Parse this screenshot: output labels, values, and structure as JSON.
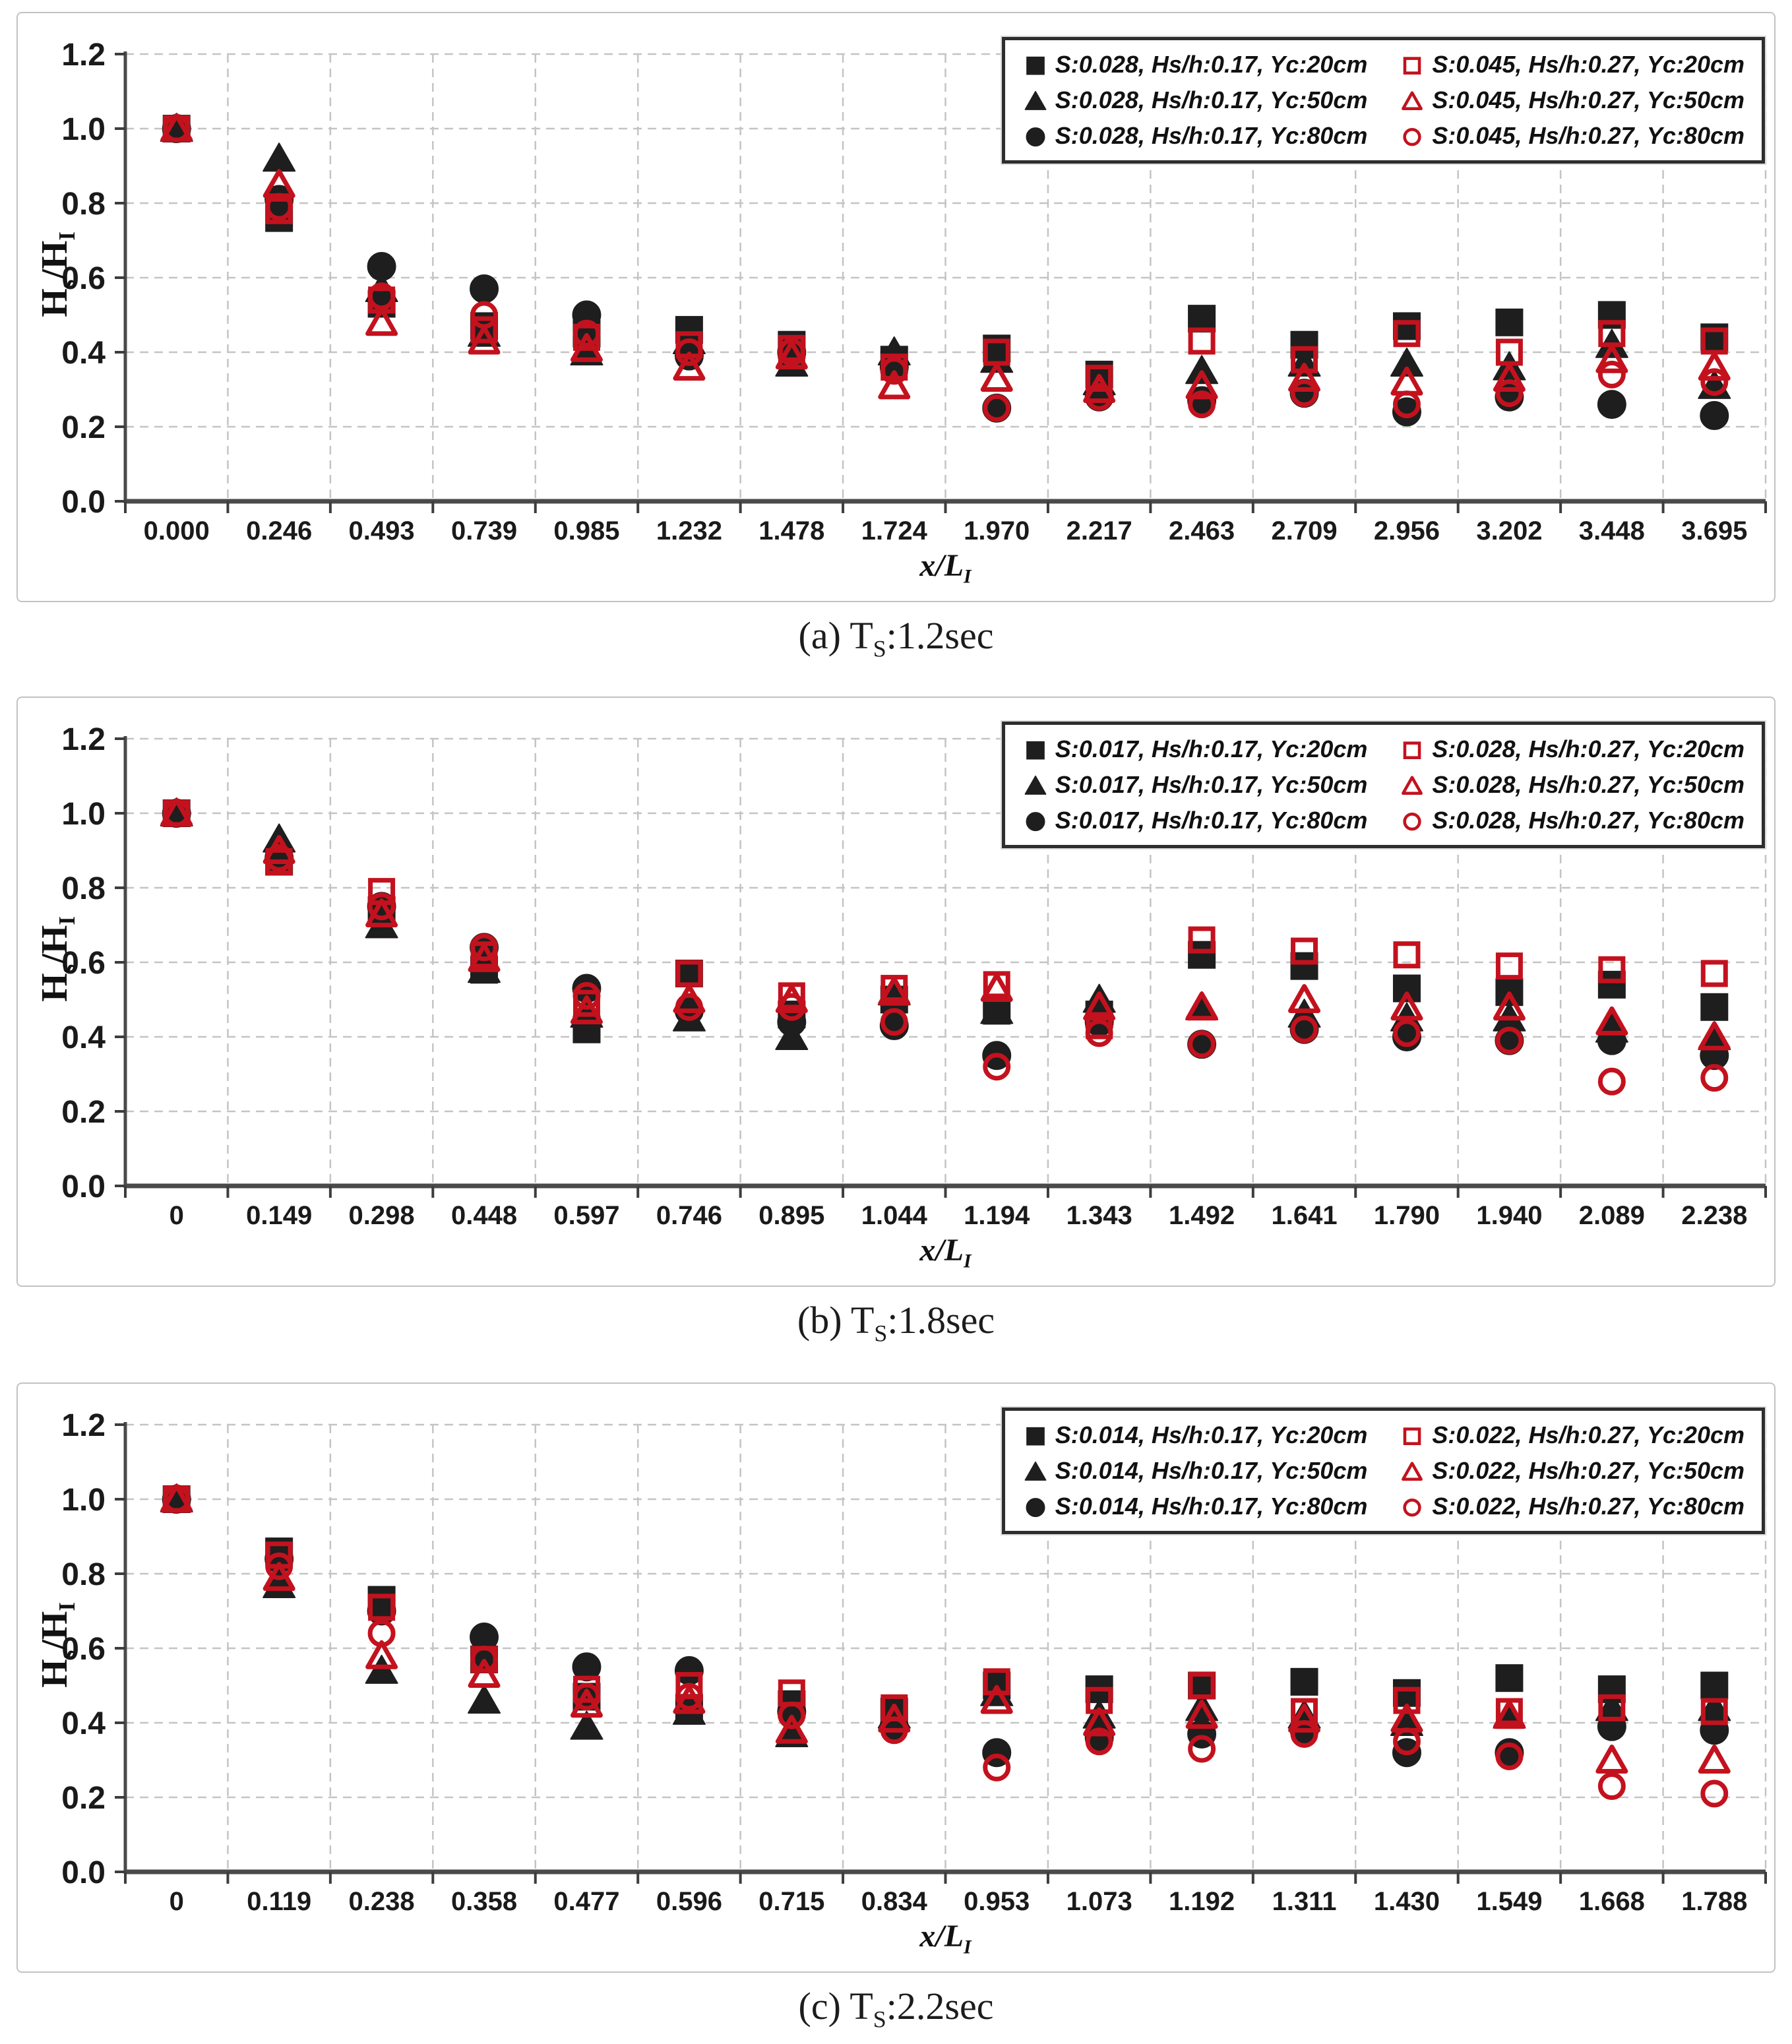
{
  "colors": {
    "black_series": "#1e1e1e",
    "red_series": "#c3121e",
    "grid": "#c4c4c4",
    "axis": "#4a4a4a",
    "panel_border": "#c2c2c2",
    "text": "#111111"
  },
  "y_axis": {
    "label": "Hs/HI",
    "label_parts": [
      [
        "H",
        false
      ],
      [
        "s",
        true
      ],
      [
        "/H",
        false
      ],
      [
        "I",
        true
      ]
    ],
    "tick_labels": [
      "0.0",
      "0.2",
      "0.4",
      "0.6",
      "0.8",
      "1.0",
      "1.2"
    ],
    "min": 0.0,
    "max": 1.2,
    "step": 0.2
  },
  "x_axis": {
    "label": "x/LI",
    "label_parts": [
      [
        "x/L",
        false
      ],
      [
        "I",
        true
      ]
    ]
  },
  "chart_data": [
    {
      "type": "scatter",
      "title": "(a) Ts:1.2sec",
      "caption_parts": [
        [
          "(a) T",
          false
        ],
        [
          "S",
          true
        ],
        [
          ":1.2sec",
          false
        ]
      ],
      "xlabel": "x/LI",
      "ylabel": "Hs/HI",
      "ylim": [
        0.0,
        1.2
      ],
      "grid": true,
      "legend_position": "top-right",
      "categories": [
        "0.000",
        "0.246",
        "0.493",
        "0.739",
        "0.985",
        "1.232",
        "1.478",
        "1.724",
        "1.970",
        "2.217",
        "2.463",
        "2.709",
        "2.956",
        "3.202",
        "3.448",
        "3.695"
      ],
      "series": [
        {
          "name": "S:0.028, Hs/h:0.17, Yc:20cm",
          "marker": "square",
          "variant": "black",
          "values": [
            1.0,
            0.76,
            0.53,
            0.47,
            0.45,
            0.46,
            0.42,
            0.38,
            0.41,
            0.34,
            0.49,
            0.42,
            0.47,
            0.48,
            0.5,
            0.44
          ]
        },
        {
          "name": "S:0.028, Hs/h:0.17, Yc:50cm",
          "marker": "triangle",
          "variant": "black",
          "values": [
            1.0,
            0.92,
            0.57,
            0.45,
            0.4,
            0.43,
            0.37,
            0.4,
            0.38,
            0.32,
            0.35,
            0.37,
            0.37,
            0.36,
            0.42,
            0.31
          ]
        },
        {
          "name": "S:0.028, Hs/h:0.17, Yc:80cm",
          "marker": "circle",
          "variant": "black",
          "values": [
            1.0,
            0.81,
            0.63,
            0.57,
            0.5,
            0.39,
            0.4,
            0.36,
            0.25,
            0.28,
            0.27,
            0.29,
            0.24,
            0.28,
            0.26,
            0.23
          ]
        },
        {
          "name": "S:0.045, Hs/h:0.27, Yc:20cm",
          "marker": "square",
          "variant": "red",
          "values": [
            1.0,
            0.78,
            0.54,
            0.46,
            0.44,
            0.42,
            0.41,
            0.36,
            0.4,
            0.33,
            0.43,
            0.38,
            0.45,
            0.4,
            0.45,
            0.43
          ]
        },
        {
          "name": "S:0.045, Hs/h:0.27, Yc:50cm",
          "marker": "triangle",
          "variant": "red",
          "values": [
            1.0,
            0.85,
            0.48,
            0.43,
            0.41,
            0.36,
            0.39,
            0.31,
            0.33,
            0.3,
            0.31,
            0.33,
            0.32,
            0.33,
            0.38,
            0.36
          ]
        },
        {
          "name": "S:0.045, Hs/h:0.27, Yc:80cm",
          "marker": "circle",
          "variant": "red",
          "values": [
            1.0,
            0.79,
            0.55,
            0.5,
            0.45,
            0.4,
            0.4,
            0.35,
            0.25,
            0.28,
            0.26,
            0.29,
            0.26,
            0.29,
            0.34,
            0.32
          ]
        }
      ]
    },
    {
      "type": "scatter",
      "title": "(b) Ts:1.8sec",
      "caption_parts": [
        [
          "(b) T",
          false
        ],
        [
          "S",
          true
        ],
        [
          ":1.8sec",
          false
        ]
      ],
      "xlabel": "x/LI",
      "ylabel": "Hs/HI",
      "ylim": [
        0.0,
        1.2
      ],
      "grid": true,
      "legend_position": "top-right",
      "categories": [
        "0",
        "0.149",
        "0.298",
        "0.448",
        "0.597",
        "0.746",
        "0.895",
        "1.044",
        "1.194",
        "1.343",
        "1.492",
        "1.641",
        "1.790",
        "1.940",
        "2.089",
        "2.238"
      ],
      "series": [
        {
          "name": "S:0.017, Hs/h:0.17, Yc:20cm",
          "marker": "square",
          "variant": "black",
          "values": [
            1.0,
            0.87,
            0.74,
            0.58,
            0.42,
            0.57,
            0.46,
            0.5,
            0.47,
            0.46,
            0.62,
            0.59,
            0.53,
            0.52,
            0.54,
            0.48
          ]
        },
        {
          "name": "S:0.017, Hs/h:0.17, Yc:50cm",
          "marker": "triangle",
          "variant": "black",
          "values": [
            1.0,
            0.93,
            0.7,
            0.58,
            0.46,
            0.45,
            0.4,
            0.52,
            0.47,
            0.5,
            0.48,
            0.46,
            0.45,
            0.45,
            0.42,
            0.4
          ]
        },
        {
          "name": "S:0.017, Hs/h:0.17, Yc:80cm",
          "marker": "circle",
          "variant": "black",
          "values": [
            1.0,
            0.88,
            0.75,
            0.64,
            0.53,
            0.47,
            0.44,
            0.43,
            0.35,
            0.44,
            0.38,
            0.42,
            0.4,
            0.39,
            0.39,
            0.35
          ]
        },
        {
          "name": "S:0.028, Hs/h:0.27, Yc:20cm",
          "marker": "square",
          "variant": "red",
          "values": [
            1.0,
            0.87,
            0.79,
            0.62,
            0.49,
            0.57,
            0.51,
            0.53,
            0.54,
            0.43,
            0.66,
            0.63,
            0.62,
            0.59,
            0.58,
            0.57
          ]
        },
        {
          "name": "S:0.028, Hs/h:0.27, Yc:50cm",
          "marker": "triangle",
          "variant": "red",
          "values": [
            1.0,
            0.9,
            0.73,
            0.61,
            0.47,
            0.5,
            0.5,
            0.52,
            0.53,
            0.48,
            0.48,
            0.5,
            0.48,
            0.48,
            0.44,
            0.4
          ]
        },
        {
          "name": "S:0.028, Hs/h:0.27, Yc:80cm",
          "marker": "circle",
          "variant": "red",
          "values": [
            1.0,
            0.88,
            0.75,
            0.64,
            0.51,
            0.48,
            0.48,
            0.44,
            0.32,
            0.41,
            0.38,
            0.42,
            0.41,
            0.39,
            0.28,
            0.29
          ]
        }
      ]
    },
    {
      "type": "scatter",
      "title": "(c) Ts:2.2sec",
      "caption_parts": [
        [
          "(c) T",
          false
        ],
        [
          "S",
          true
        ],
        [
          ":2.2sec",
          false
        ]
      ],
      "xlabel": "x/LI",
      "ylabel": "Hs/HI",
      "ylim": [
        0.0,
        1.2
      ],
      "grid": true,
      "legend_position": "top-right",
      "categories": [
        "0",
        "0.119",
        "0.238",
        "0.358",
        "0.477",
        "0.596",
        "0.715",
        "0.834",
        "0.953",
        "1.073",
        "1.192",
        "1.311",
        "1.430",
        "1.549",
        "1.668",
        "1.788"
      ],
      "series": [
        {
          "name": "S:0.014, Hs/h:0.17, Yc:20cm",
          "marker": "square",
          "variant": "black",
          "values": [
            1.0,
            0.86,
            0.73,
            0.57,
            0.47,
            0.44,
            0.45,
            0.43,
            0.5,
            0.49,
            0.5,
            0.51,
            0.48,
            0.52,
            0.49,
            0.5
          ]
        },
        {
          "name": "S:0.014, Hs/h:0.17, Yc:50cm",
          "marker": "triangle",
          "variant": "black",
          "values": [
            1.0,
            0.77,
            0.54,
            0.46,
            0.39,
            0.43,
            0.37,
            0.42,
            0.48,
            0.42,
            0.44,
            0.42,
            0.4,
            0.42,
            0.44,
            0.44
          ]
        },
        {
          "name": "S:0.014, Hs/h:0.17, Yc:80cm",
          "marker": "circle",
          "variant": "black",
          "values": [
            1.0,
            0.84,
            0.7,
            0.63,
            0.55,
            0.54,
            0.43,
            0.39,
            0.32,
            0.36,
            0.37,
            0.38,
            0.32,
            0.32,
            0.39,
            0.38
          ]
        },
        {
          "name": "S:0.022, Hs/h:0.27, Yc:20cm",
          "marker": "square",
          "variant": "red",
          "values": [
            1.0,
            0.85,
            0.71,
            0.57,
            0.49,
            0.5,
            0.48,
            0.44,
            0.51,
            0.46,
            0.5,
            0.43,
            0.46,
            0.43,
            0.44,
            0.43
          ]
        },
        {
          "name": "S:0.022, Hs/h:0.27, Yc:50cm",
          "marker": "triangle",
          "variant": "red",
          "values": [
            1.0,
            0.79,
            0.58,
            0.53,
            0.45,
            0.46,
            0.38,
            0.41,
            0.46,
            0.4,
            0.42,
            0.41,
            0.41,
            0.42,
            0.3,
            0.3
          ]
        },
        {
          "name": "S:0.022, Hs/h:0.27, Yc:80cm",
          "marker": "circle",
          "variant": "red",
          "values": [
            1.0,
            0.82,
            0.64,
            0.57,
            0.47,
            0.47,
            0.42,
            0.38,
            0.28,
            0.35,
            0.33,
            0.37,
            0.35,
            0.31,
            0.23,
            0.21
          ]
        }
      ]
    }
  ],
  "layout": {
    "panel_tops": [
      18,
      1056,
      2096
    ],
    "caption_tops": [
      930,
      1968,
      3008
    ],
    "legend_item_order": [
      0,
      3,
      1,
      4,
      2,
      5
    ]
  }
}
